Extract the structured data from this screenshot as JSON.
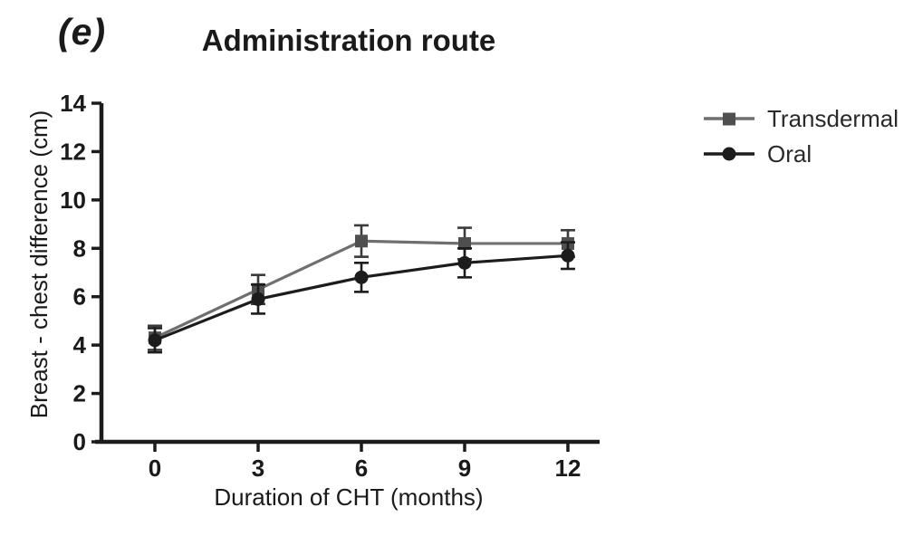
{
  "figure": {
    "panel_label": "(e)"
  },
  "chart_data": {
    "type": "line",
    "title": "Administration route",
    "xlabel": "Duration of CHT (months)",
    "ylabel": "Breast - chest difference (cm)",
    "x": [
      0,
      3,
      6,
      9,
      12
    ],
    "xlim": [
      0,
      12
    ],
    "ylim": [
      0,
      14
    ],
    "ytick_step": 2,
    "grid": false,
    "legend_position": "right",
    "axis_color": "#1c1c1c",
    "series": [
      {
        "name": "Transdermal",
        "marker": "square",
        "line_color": "#6f6f6f",
        "marker_color": "#4f4f4f",
        "error_color": "#3a3a3a",
        "values": [
          4.3,
          6.3,
          8.3,
          8.2,
          8.2
        ],
        "errors": [
          0.5,
          0.6,
          0.65,
          0.65,
          0.55
        ]
      },
      {
        "name": "Oral",
        "marker": "circle",
        "line_color": "#1c1c1c",
        "marker_color": "#1c1c1c",
        "error_color": "#1c1c1c",
        "values": [
          4.2,
          5.9,
          6.8,
          7.4,
          7.7
        ],
        "errors": [
          0.5,
          0.6,
          0.6,
          0.6,
          0.55
        ]
      }
    ]
  }
}
